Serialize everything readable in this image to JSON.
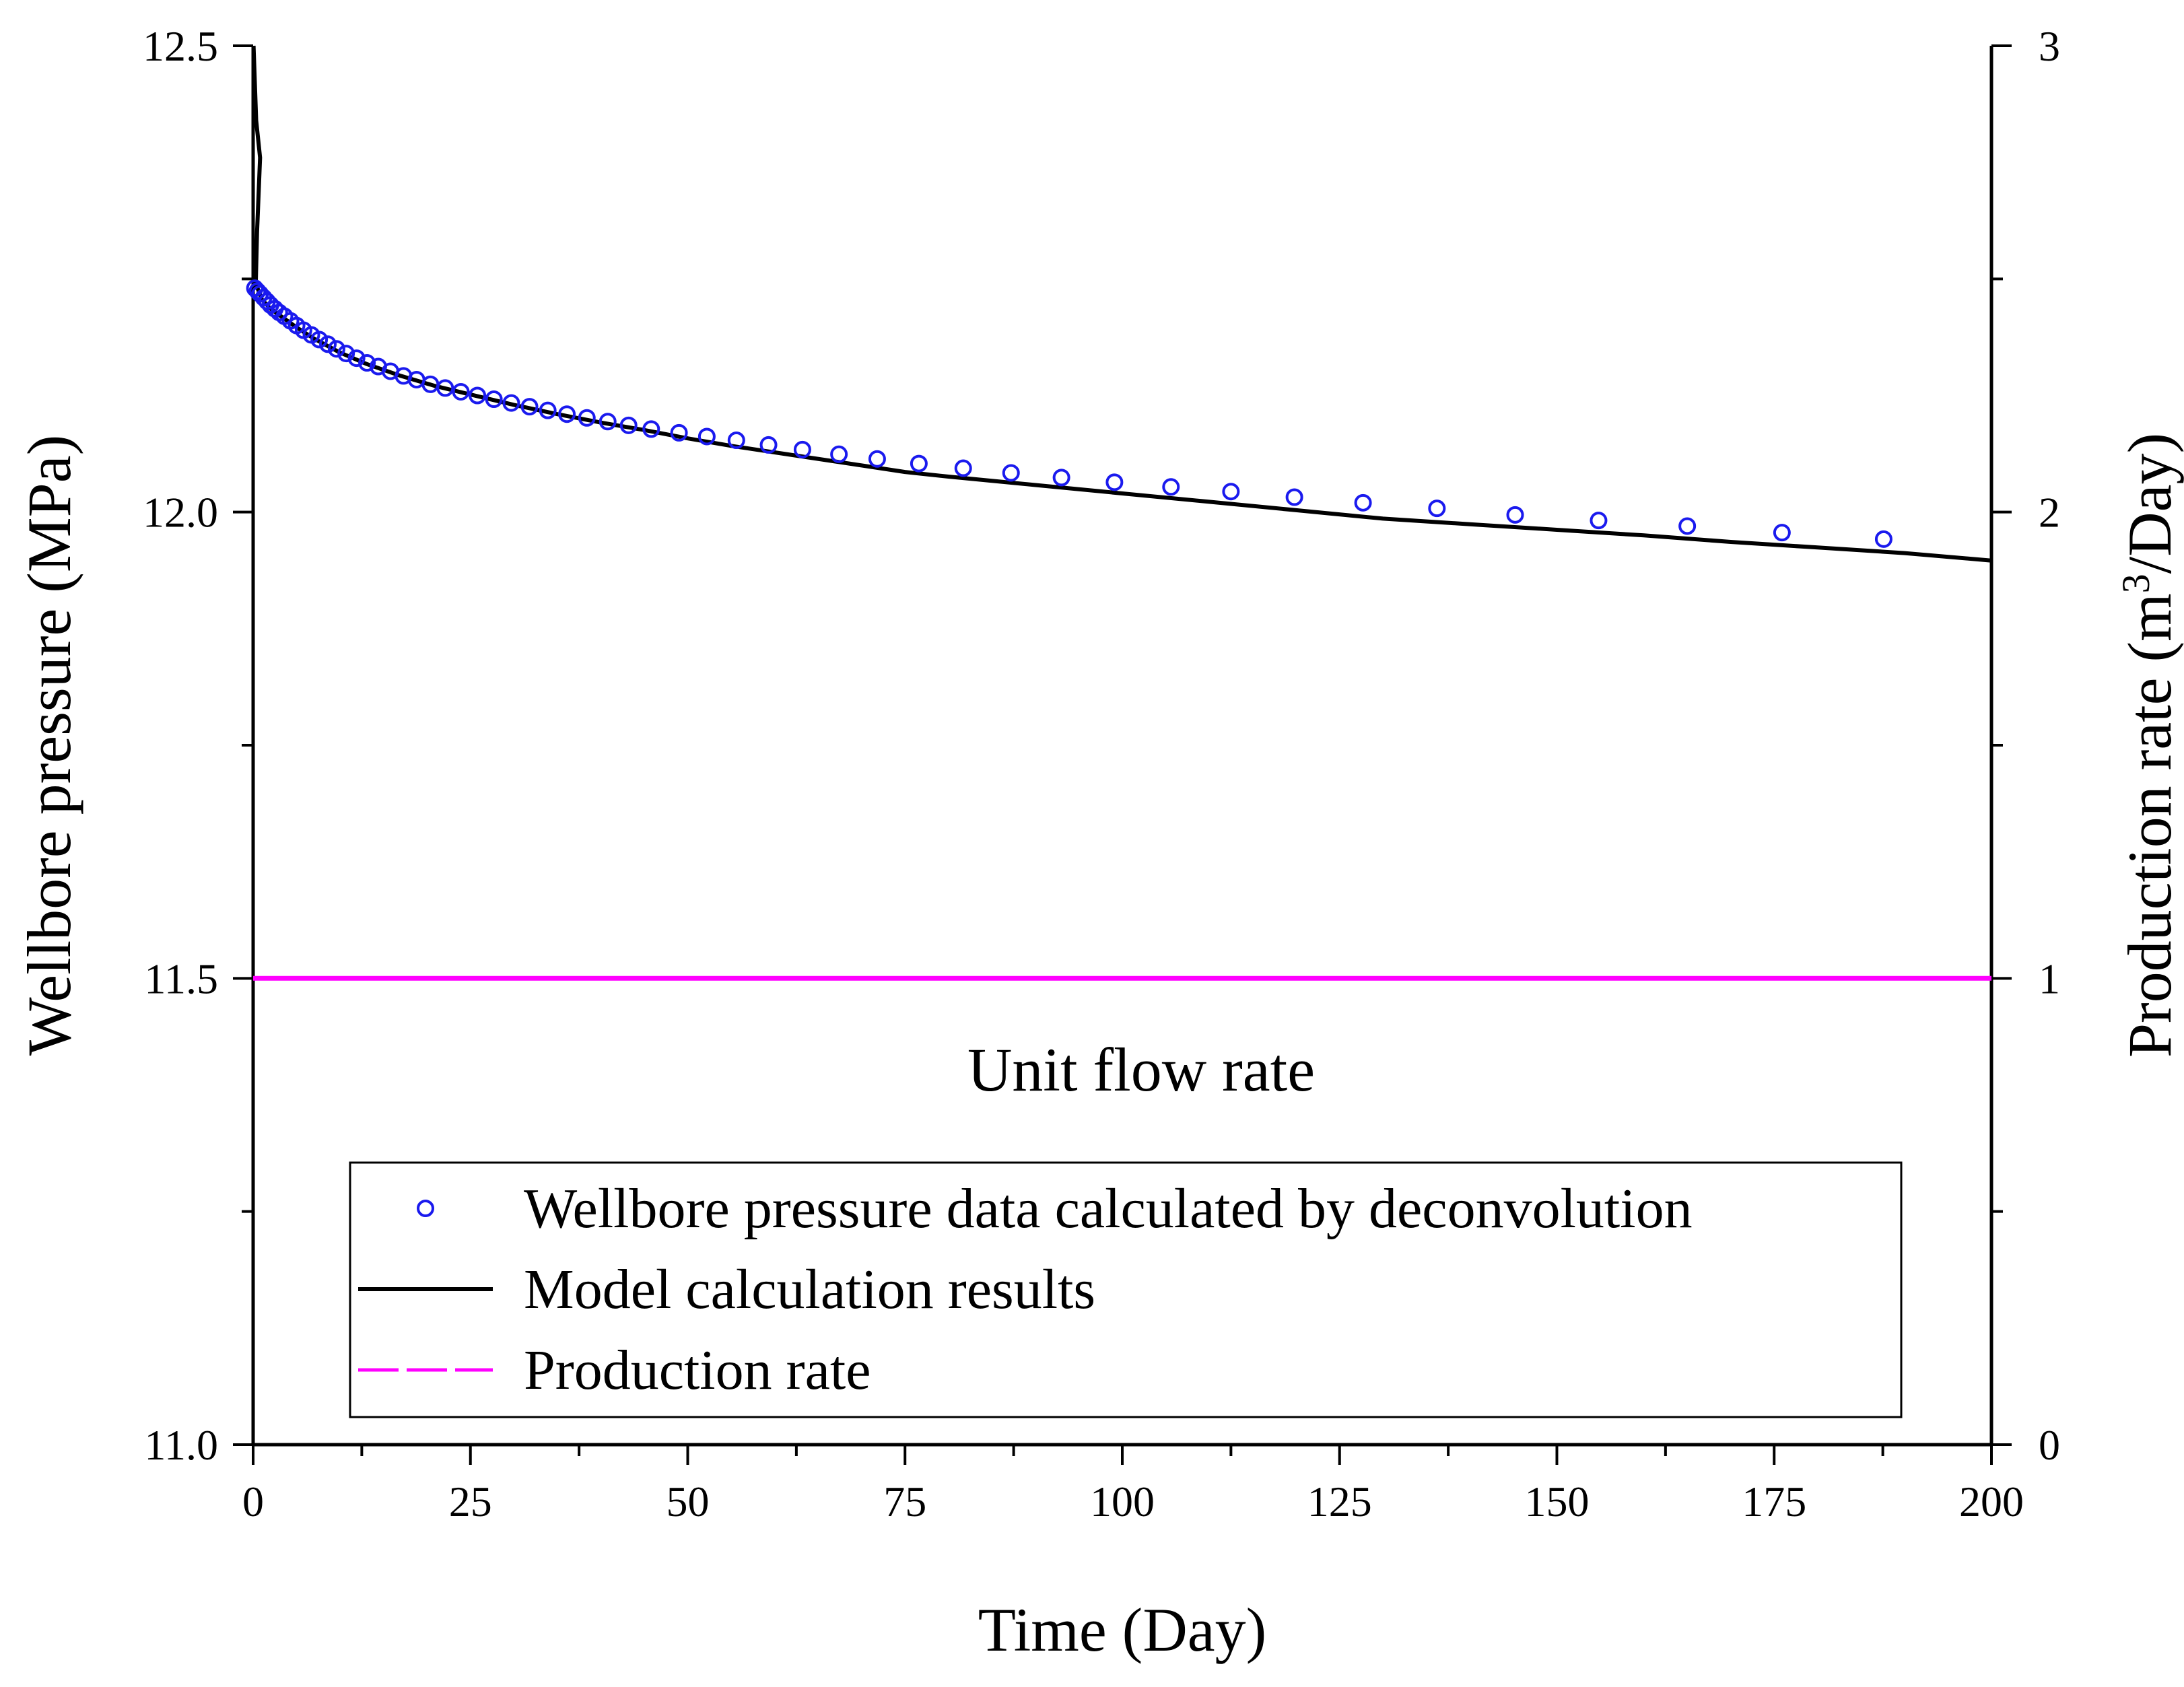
{
  "chart_data": {
    "type": "line",
    "x": {
      "label": "Time (Day)",
      "range": [
        0,
        200
      ],
      "ticks": [
        0,
        25,
        50,
        75,
        100,
        125,
        150,
        175,
        200
      ],
      "tick_labels": [
        "0",
        "25",
        "50",
        "75",
        "100",
        "125",
        "150",
        "175",
        "200"
      ]
    },
    "y_left": {
      "label": "Wellbore pressure (MPa)",
      "range": [
        11.0,
        12.5
      ],
      "ticks": [
        11.0,
        11.5,
        12.0,
        12.5
      ],
      "tick_labels": [
        "11.0",
        "11.5",
        "12.0",
        "12.5"
      ]
    },
    "y_right": {
      "label_main": "Production rate (m",
      "label_sup": "3",
      "label_end": "/Day)",
      "range": [
        0,
        3
      ],
      "ticks": [
        0,
        1,
        2,
        3
      ],
      "tick_labels": [
        "0",
        "1",
        "2",
        "3"
      ]
    },
    "annotation": "Unit flow rate",
    "series": [
      {
        "name": "Wellbore pressure data calculated by deconvolution",
        "style": "circles",
        "color": "#1a1aee",
        "axis": "left",
        "points": [
          [
            0.2,
            12.24
          ],
          [
            0.5,
            12.237
          ],
          [
            0.8,
            12.234
          ],
          [
            1.2,
            12.23
          ],
          [
            1.6,
            12.226
          ],
          [
            2.0,
            12.222
          ],
          [
            2.5,
            12.218
          ],
          [
            3.0,
            12.214
          ],
          [
            3.6,
            12.21
          ],
          [
            4.3,
            12.205
          ],
          [
            5.0,
            12.2
          ],
          [
            5.8,
            12.195
          ],
          [
            6.7,
            12.19
          ],
          [
            7.6,
            12.185
          ],
          [
            8.6,
            12.18
          ],
          [
            9.6,
            12.175
          ],
          [
            10.7,
            12.17
          ],
          [
            11.9,
            12.165
          ],
          [
            13.1,
            12.16
          ],
          [
            14.4,
            12.156
          ],
          [
            15.8,
            12.151
          ],
          [
            17.3,
            12.146
          ],
          [
            18.8,
            12.142
          ],
          [
            20.4,
            12.137
          ],
          [
            22.1,
            12.133
          ],
          [
            23.9,
            12.129
          ],
          [
            25.8,
            12.125
          ],
          [
            27.7,
            12.121
          ],
          [
            29.7,
            12.117
          ],
          [
            31.8,
            12.113
          ],
          [
            33.9,
            12.109
          ],
          [
            36.1,
            12.105
          ],
          [
            38.4,
            12.101
          ],
          [
            40.8,
            12.097
          ],
          [
            43.2,
            12.093
          ],
          [
            45.8,
            12.089
          ],
          [
            49.0,
            12.085
          ],
          [
            52.2,
            12.081
          ],
          [
            55.6,
            12.077
          ],
          [
            59.3,
            12.072
          ],
          [
            63.2,
            12.067
          ],
          [
            67.4,
            12.062
          ],
          [
            71.8,
            12.057
          ],
          [
            76.6,
            12.052
          ],
          [
            81.7,
            12.047
          ],
          [
            87.2,
            12.042
          ],
          [
            93.0,
            12.037
          ],
          [
            99.1,
            12.032
          ],
          [
            105.6,
            12.027
          ],
          [
            112.5,
            12.022
          ],
          [
            119.8,
            12.016
          ],
          [
            127.7,
            12.01
          ],
          [
            136.2,
            12.004
          ],
          [
            145.2,
            11.997
          ],
          [
            154.8,
            11.991
          ],
          [
            165.0,
            11.985
          ],
          [
            175.9,
            11.978
          ],
          [
            187.6,
            11.971
          ]
        ]
      },
      {
        "name": "Model calculation results",
        "style": "solid",
        "color": "#000000",
        "axis": "left",
        "points": [
          [
            0.05,
            12.5
          ],
          [
            0.35,
            12.42
          ],
          [
            0.8,
            12.38
          ],
          [
            0.45,
            12.3
          ],
          [
            0.3,
            12.245
          ],
          [
            1.0,
            12.228
          ],
          [
            2.0,
            12.218
          ],
          [
            3.5,
            12.208
          ],
          [
            5.0,
            12.198
          ],
          [
            7.0,
            12.186
          ],
          [
            10.0,
            12.171
          ],
          [
            13.0,
            12.159
          ],
          [
            17.0,
            12.146
          ],
          [
            21.0,
            12.135
          ],
          [
            25.0,
            12.126
          ],
          [
            30.0,
            12.115
          ],
          [
            35.0,
            12.105
          ],
          [
            40.0,
            12.096
          ],
          [
            45.0,
            12.088
          ],
          [
            50.0,
            12.079
          ],
          [
            55.0,
            12.071
          ],
          [
            60.0,
            12.064
          ],
          [
            70.0,
            12.05
          ],
          [
            75.0,
            12.043
          ],
          [
            80.0,
            12.038
          ],
          [
            90.0,
            12.029
          ],
          [
            100.0,
            12.02
          ],
          [
            110.0,
            12.011
          ],
          [
            120.0,
            12.002
          ],
          [
            130.0,
            11.993
          ],
          [
            140.0,
            11.987
          ],
          [
            150.0,
            11.981
          ],
          [
            160.0,
            11.975
          ],
          [
            170.0,
            11.968
          ],
          [
            180.0,
            11.962
          ],
          [
            190.0,
            11.956
          ],
          [
            200.0,
            11.948
          ]
        ]
      },
      {
        "name": "Production rate",
        "style": "solid",
        "color": "#ff00ff",
        "axis": "right",
        "points": [
          [
            0,
            1
          ],
          [
            200,
            1
          ]
        ]
      }
    ],
    "legend": {
      "position": "bottom-center",
      "entries": [
        "Wellbore pressure data calculated by deconvolution",
        "Model calculation results",
        "Production rate"
      ]
    }
  }
}
